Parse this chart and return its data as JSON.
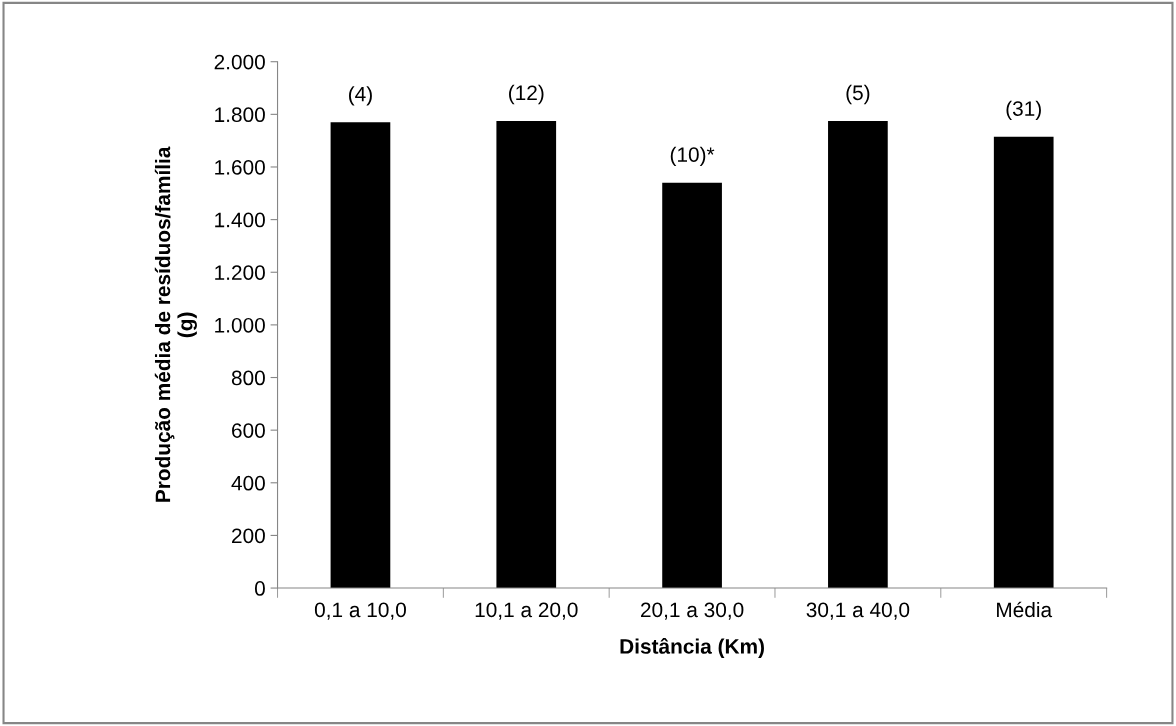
{
  "chart_data": {
    "type": "bar",
    "xlabel": "Distância (Km)",
    "ylabel": "Produção média de resíduos/família\n(g)",
    "categories": [
      "0,1 a 10,0",
      "10,1 a 20,0",
      "20,1 a 30,0",
      "30,1 a 40,0",
      "Média"
    ],
    "values": [
      1770,
      1775,
      1540,
      1775,
      1715
    ],
    "color": "#000000",
    "annotations": [
      {
        "text": "(4)",
        "x": "0,1 a 10,0",
        "y": 1770
      },
      {
        "text": "(12)",
        "x": "10,1 a 20,0",
        "y": 1775
      },
      {
        "text": "(10)*",
        "x": "20,1 a 30,0",
        "y": 1540
      },
      {
        "text": "(5)",
        "x": "30,1 a 40,0",
        "y": 1775
      },
      {
        "text": "(31)",
        "x": "Média",
        "y": 1715
      }
    ],
    "ylim": [
      0,
      2000
    ],
    "yticks": [
      0,
      200,
      400,
      600,
      800,
      {
        "value": 1000,
        "label": "1.000"
      },
      {
        "value": 1200,
        "label": "1.200"
      },
      {
        "value": 1400,
        "label": "1.400"
      },
      {
        "value": 1600,
        "label": "1.600"
      },
      {
        "value": 1800,
        "label": "1.800"
      },
      {
        "value": 2000,
        "label": "2.000"
      }
    ],
    "grid": false,
    "legend": false
  }
}
